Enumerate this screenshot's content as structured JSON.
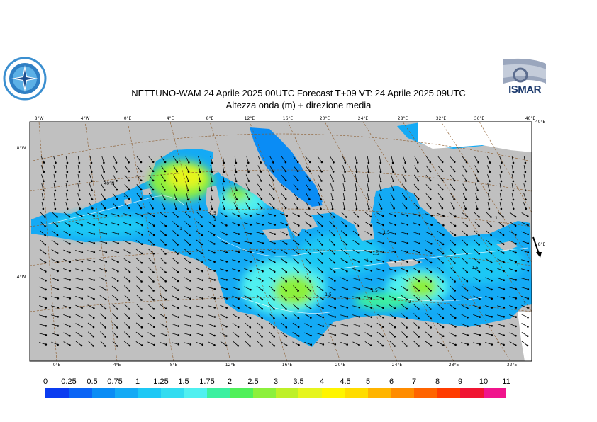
{
  "header": {
    "title": "NETTUNO-WAM  24   Aprile  2025 00UTC Forecast T+09 VT: 24   Aprile  2025 09UTC",
    "subtitle": "Altezza onda (m) + direzione media"
  },
  "logos": {
    "right": "ISMAR",
    "left_icon": "compass-rose-logo-icon"
  },
  "axes": {
    "top": [
      "8°W",
      "4°W",
      "0°E",
      "4°E",
      "8°E",
      "12°E",
      "16°E",
      "20°E",
      "24°E",
      "28°E",
      "32°E",
      "36°E",
      "40°E"
    ],
    "bottom": [
      "0°E",
      "4°E",
      "8°E",
      "12°E",
      "16°E",
      "20°E",
      "24°E",
      "28°E",
      "32°E"
    ],
    "left": [
      "8°W",
      "40°N",
      "4°W"
    ],
    "right": [
      "40°E",
      "8°E"
    ]
  },
  "contour_labels": [
    "1",
    "1",
    "1.5",
    "1",
    "1.5",
    "1.5",
    "1",
    "1.5",
    "2",
    "1.5",
    "2",
    "1.5",
    "1",
    "1",
    "1"
  ],
  "colorbar": {
    "unit": "m",
    "labels": [
      "0",
      "0.25",
      "0.5",
      "0.75",
      "1",
      "1.25",
      "1.5",
      "1.75",
      "2",
      "2.5",
      "3",
      "3.5",
      "4",
      "4.5",
      "5",
      "6",
      "7",
      "8",
      "9",
      "10",
      "11"
    ],
    "colors": [
      "#0a3cf0",
      "#0a64f5",
      "#0a8cf5",
      "#14aaf5",
      "#1ec8f5",
      "#32dcf0",
      "#50f0f0",
      "#3cf0a0",
      "#50f05a",
      "#8cf03c",
      "#bef028",
      "#e6f51e",
      "#fff500",
      "#ffdc00",
      "#ffb400",
      "#ff8c00",
      "#ff6400",
      "#ff3c00",
      "#f01432",
      "#f0148c",
      "#ff1ee6"
    ]
  }
}
